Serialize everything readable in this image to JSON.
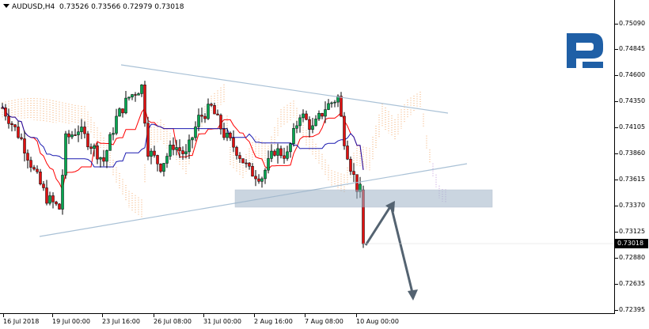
{
  "header": {
    "symbol": "AUDUSD,H4",
    "ohlc": "0.73526 0.73566 0.72979 0.73018"
  },
  "price_axis": {
    "labels": [
      "0.75090",
      "0.74845",
      "0.74600",
      "0.74350",
      "0.74105",
      "0.73860",
      "0.73615",
      "0.73370",
      "0.73125",
      "0.72880",
      "0.72635",
      "0.72395"
    ],
    "current_price": "0.73018"
  },
  "time_axis": {
    "labels": [
      "16 Jul 2018",
      "19 Jul 00:00",
      "23 Jul 16:00",
      "26 Jul 08:00",
      "31 Jul 00:00",
      "2 Aug 16:00",
      "7 Aug 08:00",
      "10 Aug 00:00"
    ]
  },
  "colors": {
    "bull": "#00a650",
    "bear": "#e01010",
    "tenkan": "#ff0000",
    "kijun": "#1a1ab0",
    "kumo_up": "#f2a05a",
    "kumo_down": "#b98cd8",
    "trendline": "#a9c1d6",
    "zone": "#9fb4c8",
    "arrow": "#546371"
  },
  "logo_icon": "roboforex-r-icon"
}
